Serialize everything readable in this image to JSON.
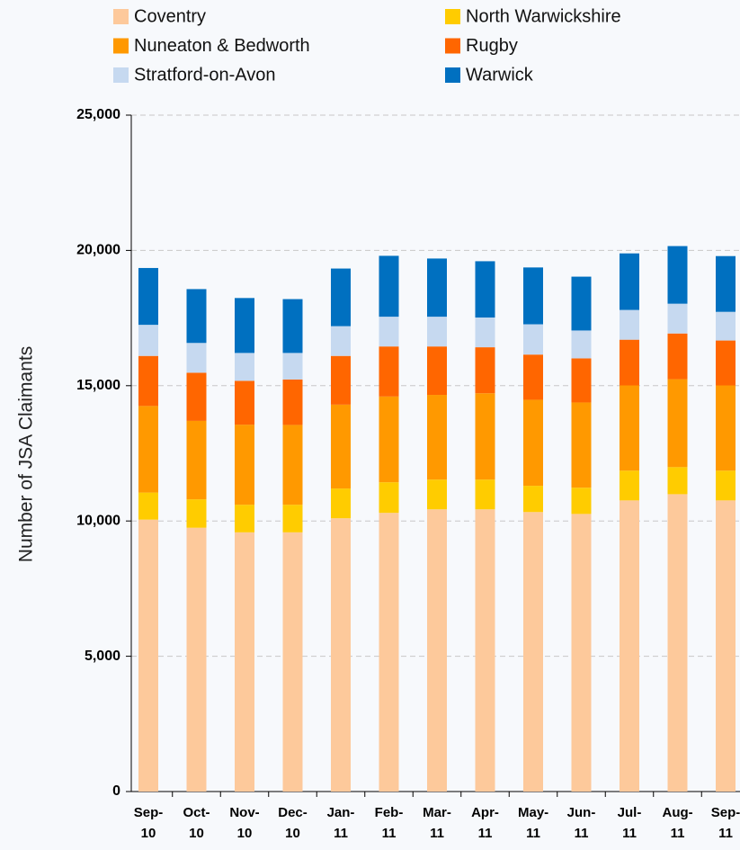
{
  "chart_data": {
    "type": "stacked_bar",
    "y_label": "Number of JSA Claimants",
    "categories": [
      "Sep-10",
      "Oct-10",
      "Nov-10",
      "Dec-10",
      "Jan-11",
      "Feb-11",
      "Mar-11",
      "Apr-11",
      "May-11",
      "Jun-11",
      "Jul-11",
      "Aug-11",
      "Sep-11"
    ],
    "series": [
      {
        "name": "Coventry",
        "color": "#fdc99b",
        "values": [
          10050,
          9750,
          9580,
          9580,
          10100,
          10300,
          10430,
          10430,
          10330,
          10260,
          10760,
          10990,
          10760
        ]
      },
      {
        "name": "North Warwickshire",
        "color": "#ffcc00",
        "values": [
          1000,
          1050,
          1020,
          1020,
          1100,
          1130,
          1100,
          1100,
          970,
          970,
          1100,
          1000,
          1100
        ]
      },
      {
        "name": "Nuneaton & Bedworth",
        "color": "#ff9900",
        "values": [
          3200,
          2900,
          2960,
          2950,
          3100,
          3170,
          3130,
          3190,
          3180,
          3150,
          3150,
          3250,
          3150
        ]
      },
      {
        "name": "Rugby",
        "color": "#ff6600",
        "values": [
          1850,
          1780,
          1620,
          1680,
          1800,
          1850,
          1790,
          1700,
          1670,
          1630,
          1690,
          1690,
          1660
        ]
      },
      {
        "name": "Stratford-on-Avon",
        "color": "#c6d9f0",
        "values": [
          1150,
          1100,
          1030,
          980,
          1100,
          1100,
          1100,
          1100,
          1120,
          1030,
          1100,
          1100,
          1060
        ]
      },
      {
        "name": "Warwick",
        "color": "#0070c0",
        "values": [
          2100,
          1990,
          2030,
          1990,
          2130,
          2250,
          2150,
          2080,
          2100,
          1990,
          2090,
          2130,
          2060
        ]
      }
    ],
    "ylim": [
      0,
      25000
    ],
    "yticks": [
      {
        "value": 0,
        "label": "0"
      },
      {
        "value": 5000,
        "label": "5,000"
      },
      {
        "value": 10000,
        "label": "10,000"
      },
      {
        "value": 15000,
        "label": "15,000"
      },
      {
        "value": 20000,
        "label": "20,000"
      },
      {
        "value": 25000,
        "label": "25,000"
      }
    ],
    "grid": true
  }
}
